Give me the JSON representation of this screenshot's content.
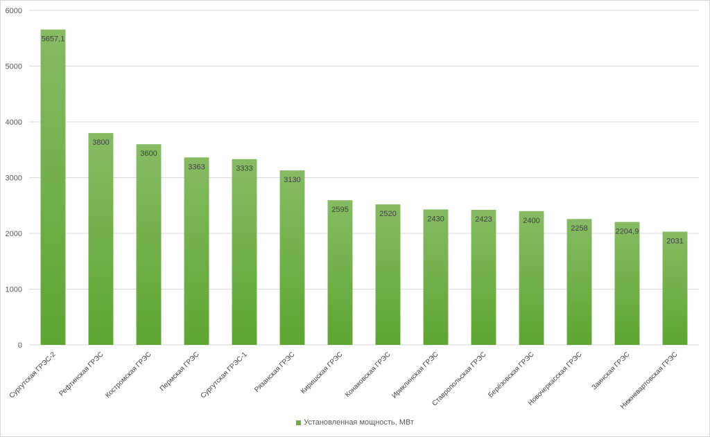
{
  "chart_data": {
    "type": "bar",
    "categories": [
      "Сургутская ГРЭС-2",
      "Рефтинская ГРЭС",
      "Костромская ГРЭС",
      "Пермская ГРЭС",
      "Сургутская ГРЭС-1",
      "Рязанская ГРЭС",
      "Киришская ГРЭС",
      "Конаковская ГРЭС",
      "Ириклинская ГРЭС",
      "Ставропольская ГРЭС",
      "Берёзовская ГРЭС",
      "Новочеркасская ГРЭС",
      "Заинская ГРЭС",
      "Нижневартовская ГРЭС"
    ],
    "series": [
      {
        "name": "Установленная мощность, МВт",
        "values": [
          5657.1,
          3800,
          3600,
          3363,
          3333,
          3130,
          2595,
          2520,
          2430,
          2423,
          2400,
          2258,
          2204.9,
          2031
        ],
        "value_labels": [
          "5657,1",
          "3800",
          "3600",
          "3363",
          "3333",
          "3130",
          "2595",
          "2520",
          "2430",
          "2423",
          "2400",
          "2258",
          "2204,9",
          "2031"
        ],
        "color": "#70ad47"
      }
    ],
    "yticks": [
      "0",
      "1000",
      "2000",
      "3000",
      "4000",
      "5000",
      "6000"
    ],
    "ylim": [
      0,
      6000
    ],
    "grid": true,
    "legend_position": "bottom",
    "title": "",
    "xlabel": "",
    "ylabel": ""
  }
}
